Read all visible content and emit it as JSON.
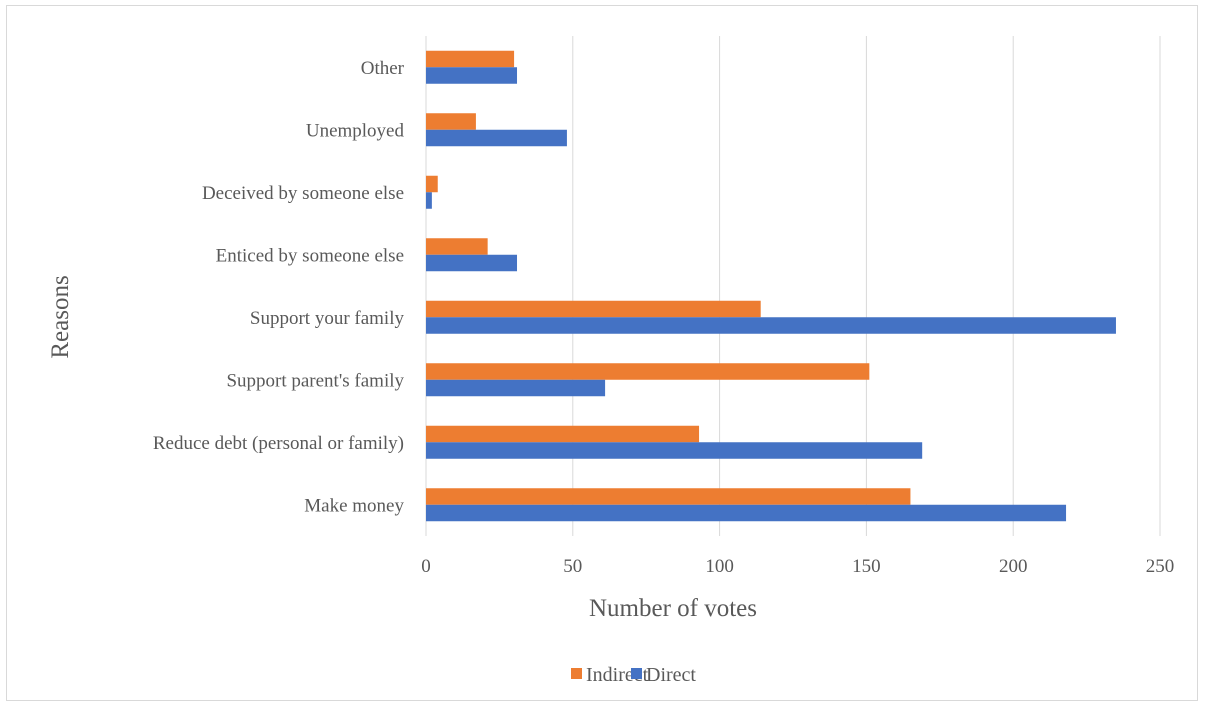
{
  "chart_data": {
    "type": "bar",
    "orientation": "horizontal",
    "categories": [
      "Make money",
      "Reduce debt (personal or family)",
      "Support parent's family",
      "Support your family",
      "Enticed by someone else",
      "Deceived by someone else",
      "Unemployed",
      "Other"
    ],
    "series": [
      {
        "name": "Indirect",
        "color": "#ED7D31",
        "values": [
          165,
          93,
          151,
          114,
          21,
          4,
          17,
          30
        ]
      },
      {
        "name": "Direct",
        "color": "#4472C4",
        "values": [
          218,
          169,
          61,
          235,
          31,
          2,
          48,
          31
        ]
      }
    ],
    "xlabel": "Number of votes",
    "ylabel": "Reasons",
    "xlim": [
      0,
      250
    ],
    "xticks": [
      0,
      50,
      100,
      150,
      200,
      250
    ],
    "xtick_labels": [
      "0",
      "50",
      "100",
      "150",
      "200",
      "250"
    ],
    "grid": "vertical",
    "legend_position": "bottom"
  }
}
